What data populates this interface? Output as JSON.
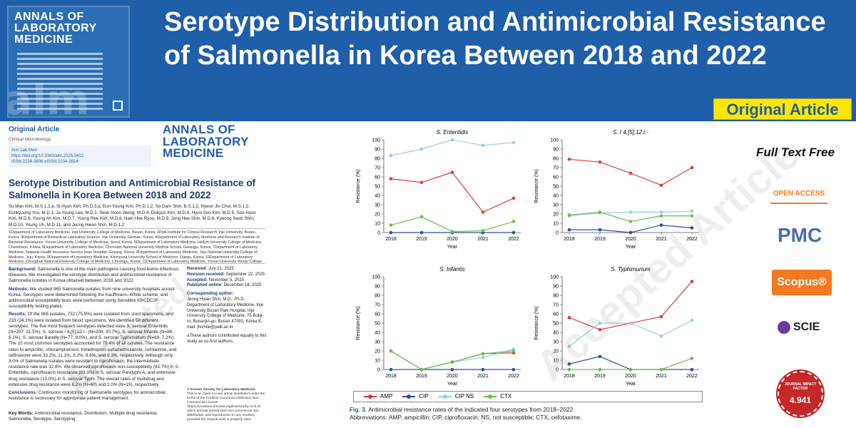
{
  "banner": {
    "title": "Serotype Distribution and Antimicrobial Resistance of Salmonella in Korea Between 2018 and 2022",
    "badge": "Original Article",
    "cover": {
      "journal_line1": "ANNALS OF",
      "journal_line2": "LABORATORY",
      "journal_line3": "MEDICINE",
      "mark": "alm"
    }
  },
  "paper": {
    "section": "Original Article",
    "category": "Clinical Microbiology",
    "journal_abbrev": "Ann Lab Med",
    "doi": "https://doi.org/10.3343/alm.2025.0412",
    "issn": "ISSN 2234-3806    eISSN 2234-3814",
    "logo_line1": "ANNALS OF",
    "logo_line2": "LABORATORY",
    "logo_line3": "MEDICINE",
    "title": "Serotype Distribution and Antimicrobial Resistance of Salmonella in Korea Between 2018 and 2022",
    "authors": "Su Man Kim, M.S.1,2,a, Si Hyun Kim, Ph.D.3,a, Eun-Young Kim, Ph.D.1,2, So Dam Shin, B.S.1,2, Hyeon Jin Choi, M.S.1,2, Eunkyoung You, M.D.1, Ja Young Lee, M.D.1, Seok Hoon Jeong, M.D.4, Dokyun Kim, M.D.4, Hyun Soo Kim, M.D.5, Soo Hyun Kim, M.D.6, Young Ah Kim, M.D.7, Young Ree Kim, M.D.8, Nam Hee Ryoo, M.D.9, Jong Hee Shin, M.D.6, Kyeong Seob Shin, M.D.10, Young Uh, M.D.11, and Jeong Hwan Shin, M.D.1,2",
    "affiliations": "1Department of Laboratory Medicine, Inje University College of Medicine, Busan, Korea; 2Paik Institute for Clinical Research, Inje University, Busan, Korea; 3Department of Biomedical Laboratory Science, Inje University, Gimhae, Korea; 4Department of Laboratory Medicine and Research Institute of Bacterial Resistance, Yonsei University College of Medicine, Seoul, Korea; 5Department of Laboratory Medicine, Hallym University College of Medicine, Chuncheon, Korea; 6Department of Laboratory Medicine, Chonnam National University Medical School, Gwangju, Korea; 7Department of Laboratory Medicine, National Health Insurance Service Ilsan Hospital, Goyang, Korea; 8Department of Laboratory Medicine, Jeju National University College of Medicine, Jeju, Korea; 9Department of Laboratory Medicine, Keimyung University School of Medicine, Daegu, Korea; 10Department of Laboratory Medicine, Chungbuk National University College of Medicine, Cheongju, Korea; 11Department of Laboratory Medicine, Yonsei University Wonju College of Medicine, Wonju, Korea",
    "background_label": "Background:",
    "background": "Salmonella is one of the main pathogens causing food-borne infectious diseases. We investigated the serotype distribution and antimicrobial resistance of Salmonella isolates in Korea obtained between 2018 and 2022.",
    "methods_label": "Methods:",
    "methods": "We studied 965 Salmonella isolates from nine university hospitals across Korea. Serotypes were determined following the Kauffmann–White scheme, and antimicrobial susceptibility tests were performed using Sensititre KRCDC2F susceptibility testing plates.",
    "results_label": "Results:",
    "results": "Of the 965 isolates, 732 (75.9%) were isolated from stool specimens, and 233 (24.1%) were isolated from blood specimens. We identified 58 different serotypes. The five most frequent serotypes detected were S. serovar Enteritidis (N=207; 21.5%), S. serovar I 4,[5],12:i:- (N=200; 20.7%), S. serovar Infantis (N=88; 9.1%), S. serovar Bareilly (N=77; 8.0%), and S. serovar Typhimurium (N=69; 7.2%). The 10 most common serotypes accounted for 79.4% of all isolates. The resistance rates to ampicillin, chloramphenicol, trimethoprim-sulfamethoxazole, cefotaxime, and ceftriaxone were 33.2%, 11.1%, 8.2%, 8.6%, and 8.3%, respectively. Although only 3.0% of Salmonella isolates were resistant to ciprofloxacin, the intermediate resistance rate was 32.8%. We observed ciprofloxacin non-susceptibility (93.7%) in S. Enteritidis, ciprofloxacin resistance (83.3%) in S. serovar Paratyphi A, and extensive drug resistance (10.0%) in S. serovar Typhi. The overall rates of multidrug and extensive drug resistance were 6.2% (N=60) and 2.0% (N=19), respectively.",
    "conclusions_label": "Conclusions:",
    "conclusions": "Continuous monitoring of Salmonella serotypes for antimicrobial resistance is necessary for appropriate patient management.",
    "keywords_label": "Key Words:",
    "keywords": "Antimicrobial resistance, Distribution, Multiple drug resistance, Salmonella, Serotype, Serotyping",
    "dates": [
      {
        "label": "Received:",
        "value": "July 21, 2025"
      },
      {
        "label": "Revision received:",
        "value": "September 22, 2025"
      },
      {
        "label": "Accepted:",
        "value": "November 5, 2025"
      },
      {
        "label": "Published online:",
        "value": "December 18, 2025"
      }
    ],
    "corr_label": "Corresponding author:",
    "corr": "Jeong Hwan Shin, M.D., Ph.D. Department of Laboratory Medicine, Inje University Busan Paik Hospital, Inje University College of Medicine, 75 Bokji-ro, Busanjin-gu, Busan 47392, Korea E-mail: jhsmile@paik.ac.kr",
    "equal": "aThese authors contributed equally to this study as co-first authors.",
    "copyright_title": "© Korean Society for Laboratory Medicine",
    "copyright": "This is an Open Access article distributed under the terms of the Creative Commons Attribution Non-Commercial License (https://creativecommons.org/licenses/by-nc/4.0) which permits unrestricted non-commercial use, distribution, and reproduction in any medium, provided the original work is properly cited.",
    "watermark": "Accepted Article"
  },
  "figure": {
    "watermark": "Accepted Article",
    "caption_label": "Fig. 3.",
    "caption": "Antimicrobial resistance rates of the indicated four serotypes from 2018–2022.",
    "abbrev": "Abbreviations: AMP, ampicillin; CIP, ciprofloxacin; NS, not susceptible; CTX, cefotaxime.",
    "legend": [
      {
        "name": "AMP",
        "color": "#e23b3b"
      },
      {
        "name": "CIP",
        "color": "#2a4fa0"
      },
      {
        "name": "CIP NS",
        "color": "#9cc8f0"
      },
      {
        "name": "CTX",
        "color": "#6cbf4a"
      }
    ]
  },
  "chart_data": [
    {
      "type": "line",
      "title": "S. Enteritidis",
      "xlabel": "Year",
      "ylabel": "Resistance (%)",
      "x": [
        "2018",
        "2019",
        "2020",
        "2021",
        "2022"
      ],
      "ylim": [
        0,
        100
      ],
      "yticks": [
        0,
        10,
        20,
        30,
        40,
        50,
        60,
        70,
        80,
        90,
        100
      ],
      "series": [
        {
          "name": "AMP",
          "values": [
            58,
            54,
            65,
            22,
            37
          ]
        },
        {
          "name": "CIP",
          "values": [
            0,
            0,
            0,
            0,
            0
          ]
        },
        {
          "name": "CIP NS",
          "values": [
            83,
            90,
            100,
            94,
            97
          ]
        },
        {
          "name": "CTX",
          "values": [
            8,
            17,
            1,
            2,
            12
          ]
        }
      ]
    },
    {
      "type": "line",
      "title": "S. I 4,[5],12:i:-",
      "xlabel": "Year",
      "ylabel": "Resistance (%)",
      "x": [
        "2018",
        "2019",
        "2020",
        "2021",
        "2022"
      ],
      "ylim": [
        0,
        100
      ],
      "yticks": [
        0,
        10,
        20,
        30,
        40,
        50,
        60,
        70,
        80,
        90,
        100
      ],
      "series": [
        {
          "name": "AMP",
          "values": [
            79,
            76,
            64,
            51,
            70
          ]
        },
        {
          "name": "CIP",
          "values": [
            3,
            3,
            0,
            8,
            5
          ]
        },
        {
          "name": "CIP NS",
          "values": [
            18,
            21,
            22,
            22,
            23
          ]
        },
        {
          "name": "CTX",
          "values": [
            19,
            22,
            12,
            18,
            18
          ]
        }
      ]
    },
    {
      "type": "line",
      "title": "S. Infantis",
      "xlabel": "Year",
      "ylabel": "Resistance (%)",
      "x": [
        "2018",
        "2019",
        "2020",
        "2021",
        "2022"
      ],
      "ylim": [
        0,
        100
      ],
      "yticks": [
        0,
        10,
        20,
        30,
        40,
        50,
        60,
        70,
        80,
        90,
        100
      ],
      "series": [
        {
          "name": "AMP",
          "values": [
            20,
            0,
            8,
            17,
            18
          ]
        },
        {
          "name": "CIP",
          "values": [
            0,
            0,
            0,
            0,
            0
          ]
        },
        {
          "name": "CIP NS",
          "values": [
            20,
            0,
            8,
            13,
            22
          ]
        },
        {
          "name": "CTX",
          "values": [
            20,
            0,
            8,
            17,
            20
          ]
        }
      ]
    },
    {
      "type": "line",
      "title": "S. Typhimurium",
      "xlabel": "Year",
      "ylabel": "Resistance (%)",
      "x": [
        "2018",
        "2019",
        "2020",
        "2021",
        "2022"
      ],
      "ylim": [
        0,
        100
      ],
      "yticks": [
        0,
        10,
        20,
        30,
        40,
        50,
        60,
        70,
        80,
        90,
        100
      ],
      "series": [
        {
          "name": "AMP",
          "values": [
            56,
            43,
            50,
            57,
            95
          ]
        },
        {
          "name": "CIP",
          "values": [
            6,
            14,
            0,
            0,
            0
          ]
        },
        {
          "name": "CIP NS",
          "values": [
            25,
            50,
            50,
            36,
            53
          ]
        },
        {
          "name": "CTX",
          "values": [
            0,
            0,
            0,
            0,
            12
          ]
        }
      ]
    }
  ],
  "sidebar": {
    "full_text": "Full Text Free",
    "open_access": "OPEN ACCESS",
    "pmc": "PMC",
    "scopus": "Scopus®",
    "scie": "SCIE",
    "impact_label": "JOURNAL IMPACT FACTOR",
    "impact_value": "4.941"
  }
}
